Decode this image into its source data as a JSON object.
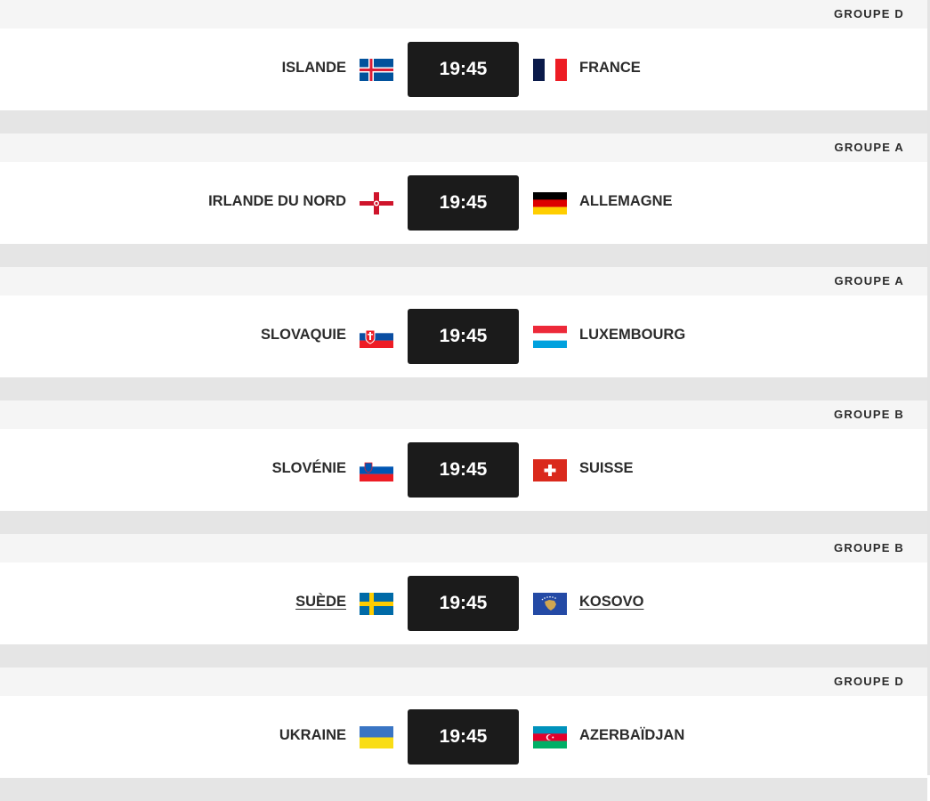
{
  "matches": [
    {
      "group": "GROUPE D",
      "home": "ISLANDE",
      "home_flag": "iceland-flag",
      "time": "19:45",
      "away": "FRANCE",
      "away_flag": "france-flag",
      "home_link": false,
      "away_link": false
    },
    {
      "group": "GROUPE A",
      "home": "IRLANDE DU NORD",
      "home_flag": "northern-ireland-flag",
      "time": "19:45",
      "away": "ALLEMAGNE",
      "away_flag": "germany-flag",
      "home_link": false,
      "away_link": false
    },
    {
      "group": "GROUPE A",
      "home": "SLOVAQUIE",
      "home_flag": "slovakia-flag",
      "time": "19:45",
      "away": "LUXEMBOURG",
      "away_flag": "luxembourg-flag",
      "home_link": false,
      "away_link": false
    },
    {
      "group": "GROUPE B",
      "home": "SLOVÉNIE",
      "home_flag": "slovenia-flag",
      "time": "19:45",
      "away": "SUISSE",
      "away_flag": "switzerland-flag",
      "home_link": false,
      "away_link": false
    },
    {
      "group": "GROUPE B",
      "home": "SUÈDE",
      "home_flag": "sweden-flag",
      "time": "19:45",
      "away": "KOSOVO",
      "away_flag": "kosovo-flag",
      "home_link": true,
      "away_link": true
    },
    {
      "group": "GROUPE D",
      "home": "UKRAINE",
      "home_flag": "ukraine-flag",
      "time": "19:45",
      "away": "AZERBAÏDJAN",
      "away_flag": "azerbaijan-flag",
      "home_link": false,
      "away_link": false
    }
  ]
}
